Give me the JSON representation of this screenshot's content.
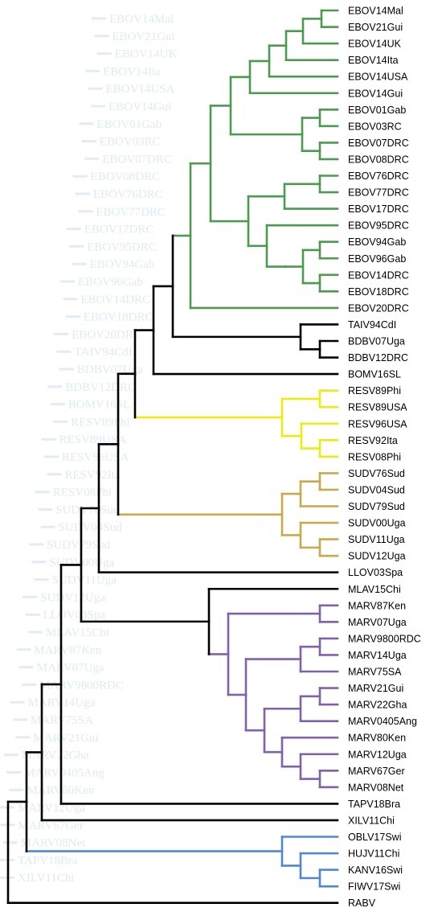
{
  "colors": {
    "ebola": "#4c9a4f",
    "resv": "#ecec12",
    "sudv": "#c9a94a",
    "marv": "#8062a8",
    "cueva": "#4f86d6",
    "black": "#000000"
  },
  "leaves": [
    "EBOV14Mal",
    "EBOV21Gui",
    "EBOV14UK",
    "EBOV14Ita",
    "EBOV14USA",
    "EBOV14Gui",
    "EBOV01Gab",
    "EBOV03RC",
    "EBOV07DRC",
    "EBOV08DRC",
    "EBOV76DRC",
    "EBOV77DRC",
    "EBOV17DRC",
    "EBOV95DRC",
    "EBOV94Gab",
    "EBOV96Gab",
    "EBOV14DRC",
    "EBOV18DRC",
    "EBOV20DRC",
    "TAIV94CdI",
    "BDBV07Uga",
    "BDBV12DRC",
    "BOMV16SL",
    "RESV89Phi",
    "RESV89USA",
    "RESV96USA",
    "RESV92Ita",
    "RESV08Phi",
    "SUDV76Sud",
    "SUDV04Sud",
    "SUDV79Sud",
    "SUDV00Uga",
    "SUDV11Uga",
    "SUDV12Uga",
    "LLOV03Spa",
    "MLAV15Chi",
    "MARV87Ken",
    "MARV07Uga",
    "MARV9800RDC",
    "MARV14Uga",
    "MARV75SA",
    "MARV21Gui",
    "MARV22Gha",
    "MARV0405Ang",
    "MARV80Ken",
    "MARV12Uga",
    "MARV67Ger",
    "MARV08Net",
    "TAPV18Bra",
    "XILV11Chi",
    "OBLV17Swi",
    "HUJV11Chi",
    "KANV16Swi",
    "FIWV17Swi",
    "RABV"
  ]
}
